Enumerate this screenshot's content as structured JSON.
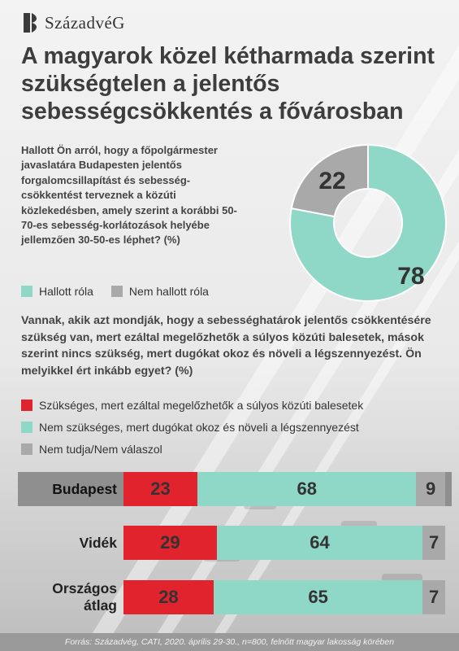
{
  "brand": {
    "name": "SzázadvéG"
  },
  "headline": "A magyarok közel kétharmada szerint szükségtelen a jelentős sebességcsökkentés a fővárosban",
  "colors": {
    "red": "#e0232c",
    "teal": "#8fd8c8",
    "gray": "#a9a9a9"
  },
  "question1": {
    "text": "Hallott Ön arról, hogy a főpolgármester javaslatára Budapesten jelentős forgalomcsillapítást és sebesség-csökkentést terveznek a közúti közlekedésben, amely szerint a korábbi 50-70-es sebesség-korlátozások helyébe jellemzően 30-50-es léphet? (%)",
    "legend": [
      "Hallott róla",
      "Nem hallott róla"
    ]
  },
  "question2": {
    "text": "Vannak, akik azt mondják, hogy a sebességhatárok jelentős csökkentésére szükség van, mert ezáltal megelőzhetők a súlyos közúti balesetek, mások szerint nincs szükség, mert dugókat okoz és növeli a légszennyezést. Ön melyikkel ért inkább egyet? (%)",
    "legend": [
      "Szükséges, mert ezáltal megelőzhetők a súlyos közúti balesetek",
      "Nem szükséges, mert dugókat okoz és növeli a légszennyezést",
      "Nem tudja/Nem válaszol"
    ]
  },
  "chart_data": [
    {
      "type": "pie",
      "donut": true,
      "categories": [
        "Hallott róla",
        "Nem hallott róla"
      ],
      "values": [
        78,
        22
      ],
      "colors": [
        "#8fd8c8",
        "#a9a9a9"
      ]
    },
    {
      "type": "bar",
      "orientation": "horizontal",
      "stacked": true,
      "categories": [
        "Budapest",
        "Vidék",
        "Országos átlag"
      ],
      "series": [
        {
          "name": "Szükséges, mert ezáltal megelőzhetők a súlyos közúti balesetek",
          "values": [
            23,
            29,
            28
          ],
          "color": "#e0232c"
        },
        {
          "name": "Nem szükséges, mert dugókat okoz és növeli a légszennyezést",
          "values": [
            68,
            64,
            65
          ],
          "color": "#8fd8c8"
        },
        {
          "name": "Nem tudja/Nem válaszol",
          "values": [
            9,
            7,
            7
          ],
          "color": "#a9a9a9"
        }
      ]
    }
  ],
  "source": "Forrás: Századvég, CATI, 2020. április 29-30., n=800, felnőtt magyar lakosság körében"
}
